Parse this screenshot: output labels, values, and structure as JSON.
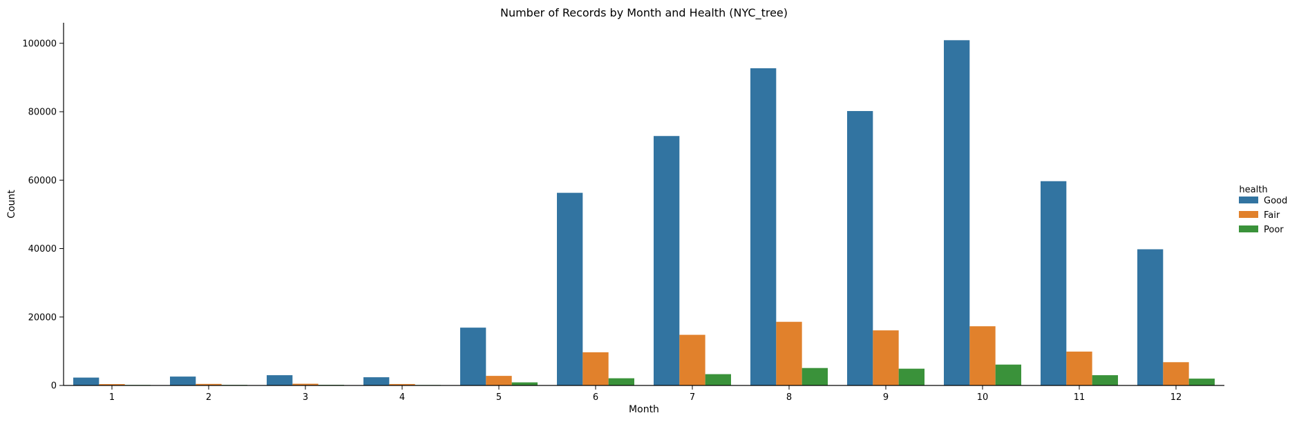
{
  "chart_data": {
    "type": "bar",
    "title": "Number of Records by Month and Health (NYC_tree)",
    "xlabel": "Month",
    "ylabel": "Count",
    "categories": [
      "1",
      "2",
      "3",
      "4",
      "5",
      "6",
      "7",
      "8",
      "9",
      "10",
      "11",
      "12"
    ],
    "series": [
      {
        "name": "Good",
        "color": "#3274a1",
        "values": [
          2300,
          2600,
          3000,
          2400,
          16900,
          56300,
          72900,
          92700,
          80200,
          100900,
          59700,
          39800
        ]
      },
      {
        "name": "Fair",
        "color": "#e1812c",
        "values": [
          400,
          450,
          500,
          420,
          2800,
          9700,
          14800,
          18600,
          16100,
          17300,
          9900,
          6800
        ]
      },
      {
        "name": "Poor",
        "color": "#3a923a",
        "values": [
          150,
          160,
          180,
          140,
          900,
          2100,
          3300,
          5100,
          4900,
          6100,
          3000,
          2000
        ]
      }
    ],
    "ylim": [
      0,
      106000
    ],
    "yticks": [
      0,
      20000,
      40000,
      60000,
      80000,
      100000
    ],
    "grid": false,
    "legend": {
      "title": "health",
      "placement": "right"
    }
  }
}
